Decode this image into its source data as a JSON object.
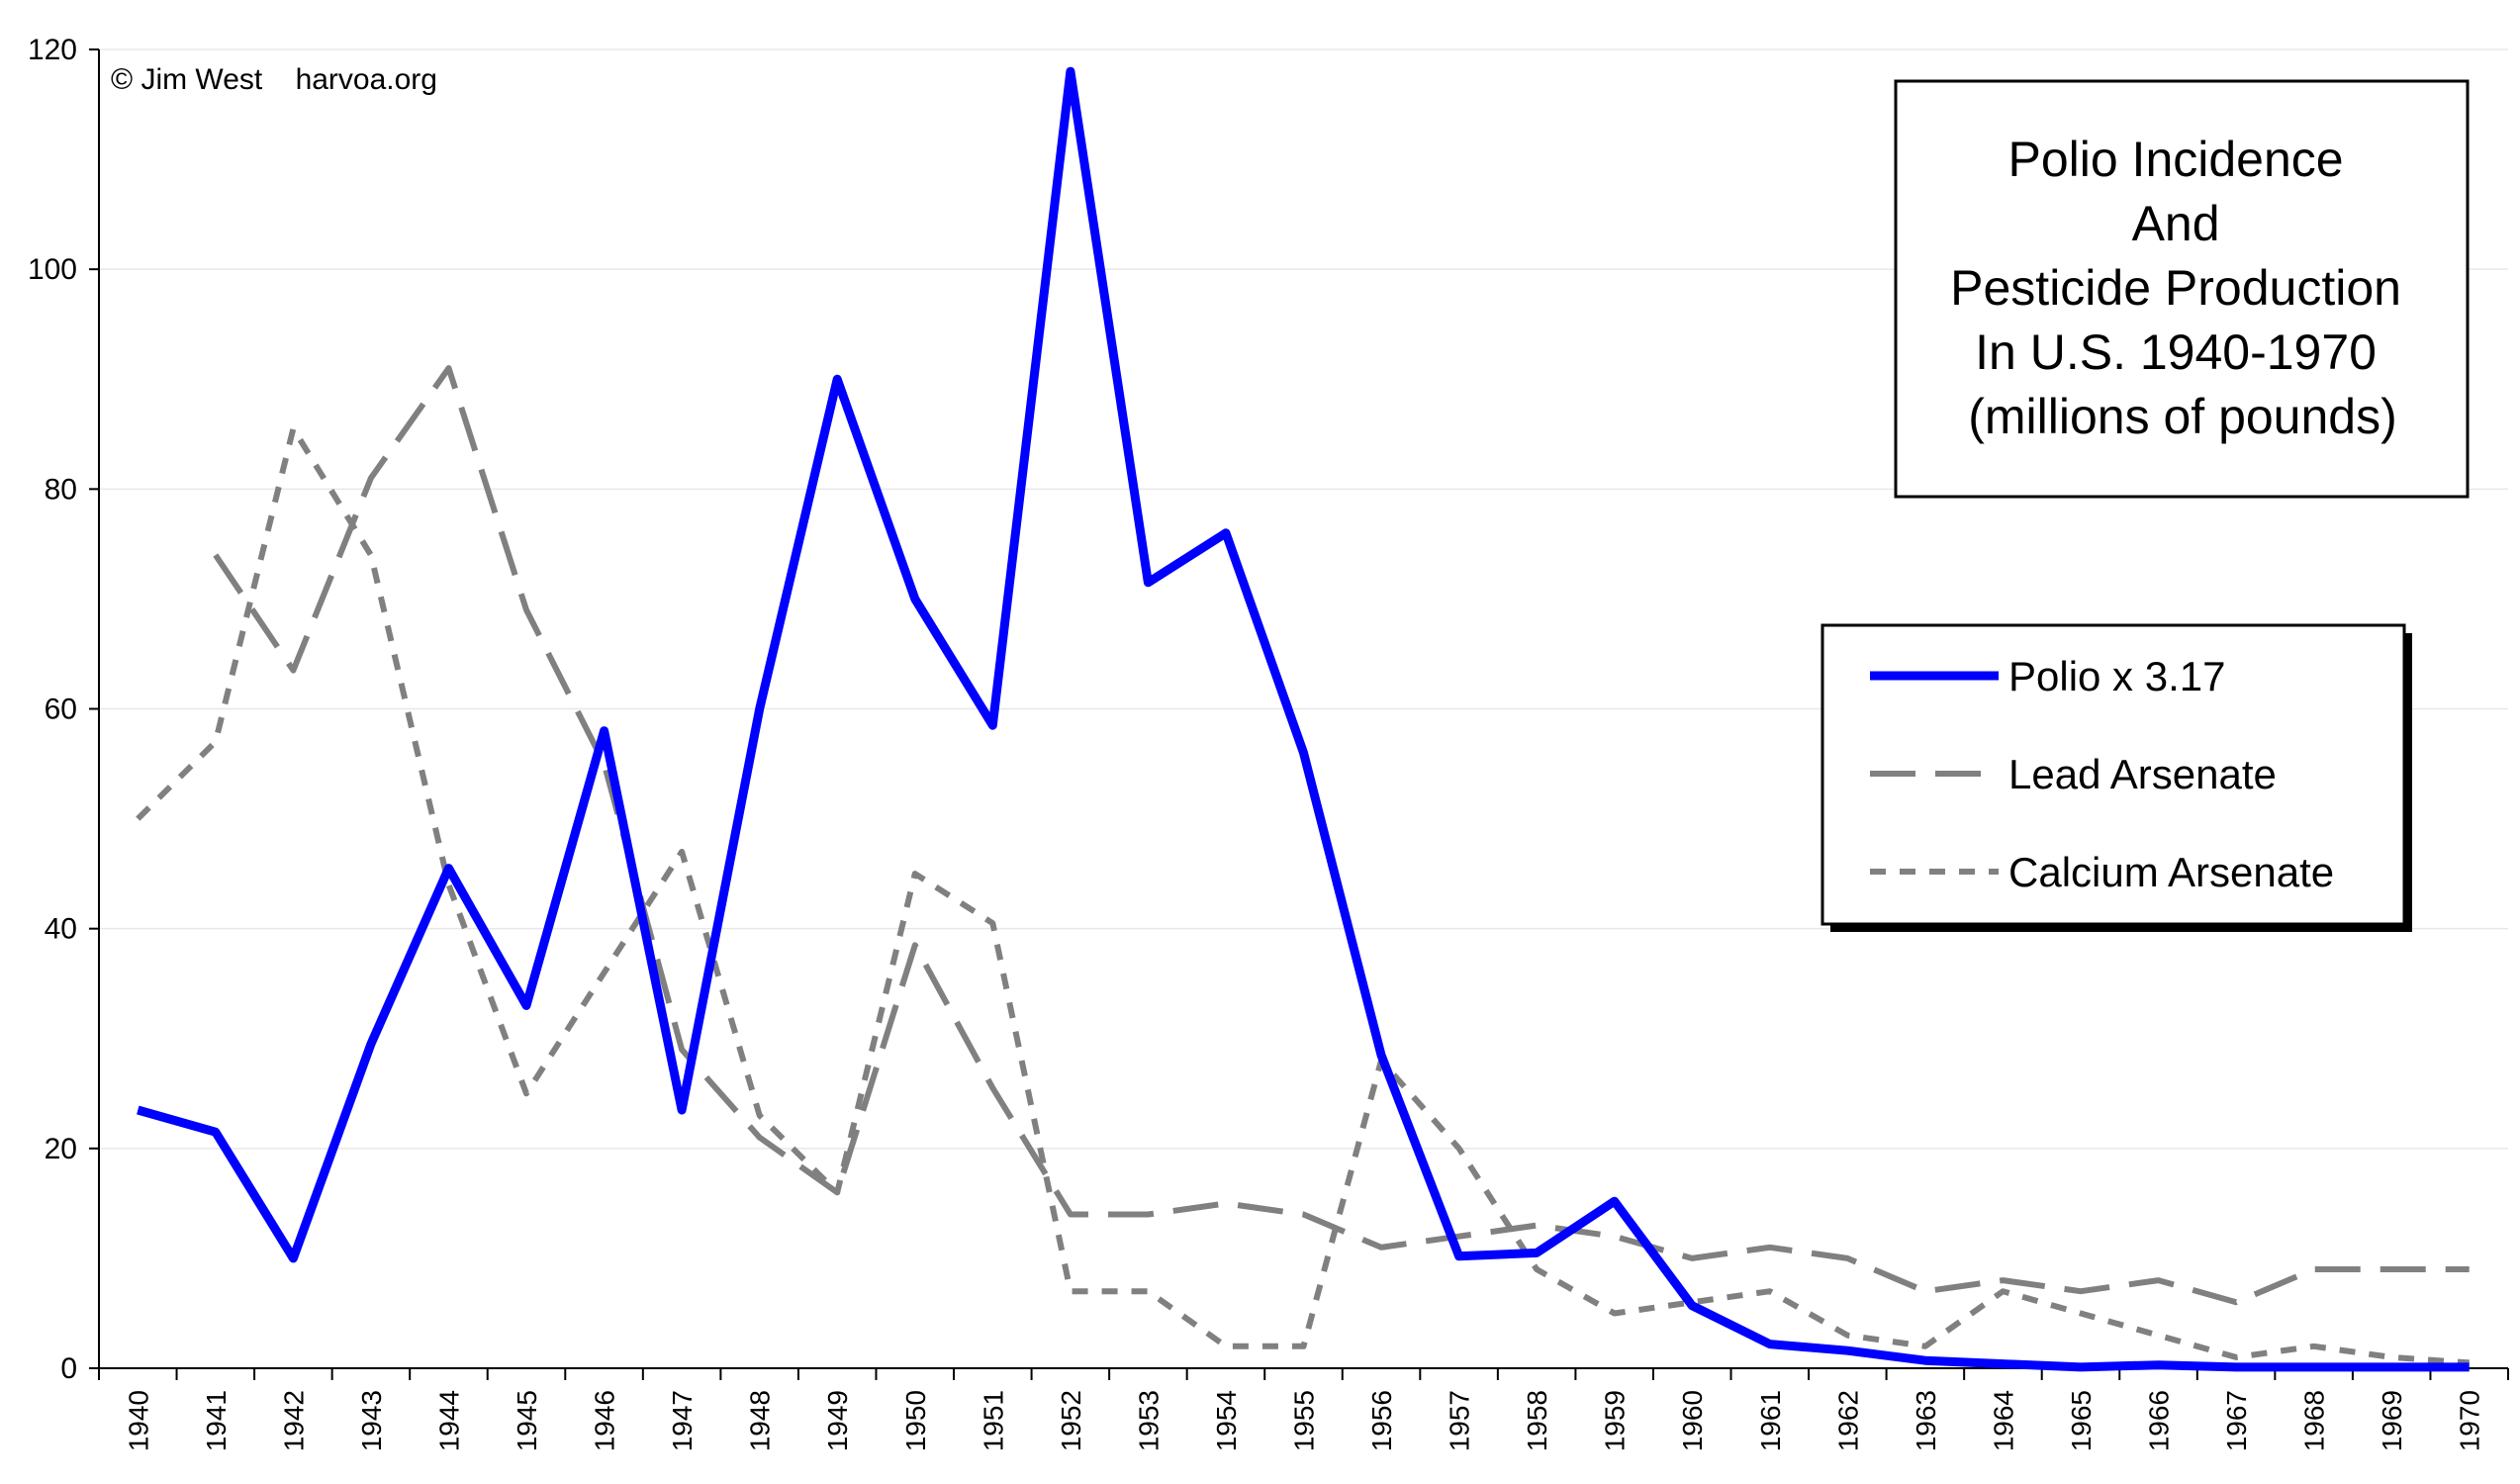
{
  "copyright": "© Jim West    harvoa.org",
  "title_lines": [
    "Polio Incidence",
    "And",
    "Pesticide Production",
    "In U.S. 1940-1970",
    "(millions of pounds)"
  ],
  "legend": [
    {
      "label": "Polio x 3.17",
      "color": "#0000ff",
      "style": "solid"
    },
    {
      "label": "Lead Arsenate",
      "color": "#808080",
      "style": "long-dash"
    },
    {
      "label": "Calcium Arsenate",
      "color": "#808080",
      "style": "short-dash"
    }
  ],
  "chart_data": {
    "type": "line",
    "title": "Polio Incidence And Pesticide Production In U.S. 1940-1970 (millions of pounds)",
    "xlabel": "",
    "ylabel": "",
    "ylim": [
      0,
      120
    ],
    "yticks": [
      0,
      20,
      40,
      60,
      80,
      100,
      120
    ],
    "grid": true,
    "legend_position": "right",
    "x": [
      1940,
      1941,
      1942,
      1943,
      1944,
      1945,
      1946,
      1947,
      1948,
      1949,
      1950,
      1951,
      1952,
      1953,
      1954,
      1955,
      1956,
      1957,
      1958,
      1959,
      1960,
      1961,
      1962,
      1963,
      1964,
      1965,
      1966,
      1967,
      1968,
      1969,
      1970
    ],
    "series": [
      {
        "name": "Polio x 3.17",
        "color": "#0000ff",
        "values": [
          23.5,
          21.5,
          10,
          29.5,
          45.5,
          33,
          58,
          23.5,
          60,
          90,
          70,
          58.5,
          118,
          71.5,
          76,
          56,
          28.5,
          10.2,
          10.5,
          15.2,
          5.7,
          2.2,
          1.6,
          0.7,
          0.4,
          0.1,
          0.3,
          0.1,
          0.1,
          0.1,
          0.1
        ]
      },
      {
        "name": "Lead Arsenate",
        "color": "#808080",
        "values": [
          null,
          74,
          63.5,
          81,
          91,
          69,
          55,
          29,
          21,
          16,
          38.5,
          25.5,
          14,
          14,
          15,
          14,
          11,
          12,
          13,
          12,
          10,
          11,
          10,
          7,
          8,
          7,
          8,
          6,
          9,
          9,
          9
        ]
      },
      {
        "name": "Calcium Arsenate",
        "color": "#808080",
        "values": [
          50,
          57,
          85.5,
          74,
          44,
          25,
          36,
          47,
          23,
          16,
          45,
          40.5,
          7,
          7,
          2,
          2,
          28,
          20,
          9,
          5,
          6,
          7,
          3,
          2,
          7,
          5,
          3,
          1,
          2,
          1,
          0.5
        ]
      }
    ]
  }
}
